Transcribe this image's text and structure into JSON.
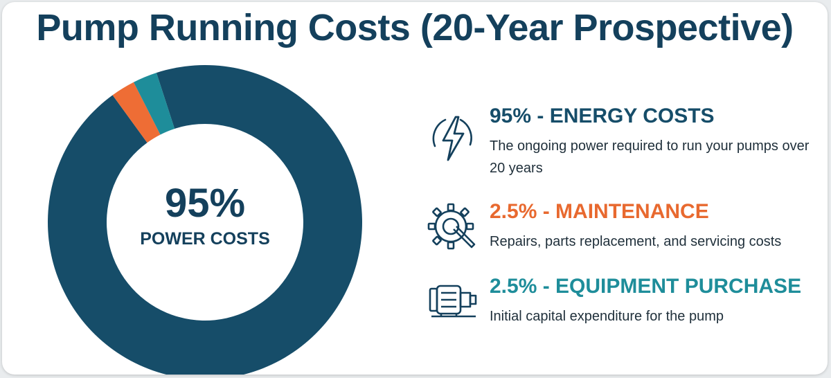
{
  "title": "Pump Running Costs (20-Year Prospective)",
  "chart_data": {
    "type": "pie",
    "style": "donut",
    "center_value": "95%",
    "center_label": "POWER COSTS",
    "slices": [
      {
        "label": "ENERGY COSTS",
        "value": 95,
        "color": "#164d69"
      },
      {
        "label": "MAINTENANCE",
        "value": 2.5,
        "color": "#ee6d35"
      },
      {
        "label": "EQUIPMENT PURCHASE",
        "value": 2.5,
        "color": "#1e8d9a"
      }
    ]
  },
  "legend": [
    {
      "heading": "95% - ENERGY COSTS",
      "description": "The ongoing power required to run your pumps over 20 years",
      "color": "#164d69",
      "icon": "lightning-bolt-icon"
    },
    {
      "heading": "2.5% - MAINTENANCE",
      "description": "Repairs, parts replacement, and servicing costs",
      "color": "#e8692f",
      "icon": "gear-wrench-icon"
    },
    {
      "heading": "2.5% - EQUIPMENT PURCHASE",
      "description": "Initial capital expenditure for the pump",
      "color": "#1e8d9a",
      "icon": "pump-motor-icon"
    }
  ]
}
